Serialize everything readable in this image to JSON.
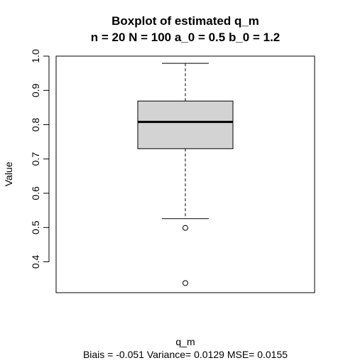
{
  "chart_data": {
    "type": "boxplot",
    "title": "Boxplot of estimated q_m",
    "subtitle": "n = 20  N = 100  a_0 = 0.5  b_0 = 1.2",
    "xlabel": "q_m",
    "ylabel": "Value",
    "footer": "Biais = -0.051  Variance= 0.0129  MSE= 0.0155",
    "ylim": [
      0.31,
      1.0
    ],
    "yticks": [
      "0.4",
      "0.5",
      "0.6",
      "0.7",
      "0.8",
      "0.9",
      "1.0"
    ],
    "grid": false,
    "box": {
      "whisker_low": 0.526,
      "q1": 0.73,
      "median": 0.808,
      "q3": 0.869,
      "whisker_high": 0.979,
      "outliers": [
        0.499,
        0.338
      ]
    },
    "colors": {
      "box_fill": "#d3d3d3",
      "stroke": "#000000"
    }
  }
}
